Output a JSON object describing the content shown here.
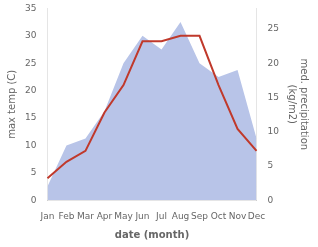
{
  "chart_data": {
    "type": "line",
    "xlabel": "date (month)",
    "ylabel": "max temp (C)",
    "y2label": "med. precipitation\n(kg/m2)",
    "categories": [
      "Jan",
      "Feb",
      "Mar",
      "Apr",
      "May",
      "Jun",
      "Jul",
      "Aug",
      "Sep",
      "Oct",
      "Nov",
      "Dec"
    ],
    "series": [
      {
        "type": "area",
        "axis": "y2",
        "color": "#b8c4e8",
        "values": [
          2,
          8,
          9,
          13,
          20,
          24,
          22,
          26,
          20,
          18,
          19,
          9
        ]
      },
      {
        "type": "line",
        "color": "#c0392b",
        "values": [
          4,
          7,
          9,
          16,
          21,
          29,
          29,
          30,
          30,
          21,
          13,
          9
        ]
      }
    ],
    "ylim": [
      0,
      35
    ],
    "yticks": [
      0,
      5,
      10,
      15,
      20,
      25,
      30,
      35
    ],
    "y2lim": [
      0,
      28
    ],
    "y2ticks": [
      0,
      5,
      10,
      15,
      20,
      25
    ],
    "grid": false
  }
}
